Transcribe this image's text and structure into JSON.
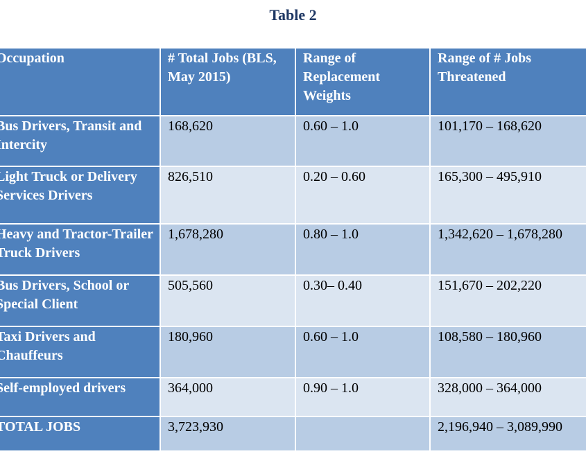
{
  "title": "Table 2",
  "headers": [
    "Occupation",
    "# Total Jobs (BLS, May 2015)",
    "Range of Replacement Weights",
    "Range of # Jobs Threatened"
  ],
  "rows": [
    {
      "occupation": "Bus Drivers, Transit and Intercity",
      "total_jobs": "168,620",
      "weights": "0.60 – 1.0",
      "threatened": "101,170 – 168,620"
    },
    {
      "occupation": "Light Truck or Delivery Services Drivers",
      "total_jobs": "826,510",
      "weights": "0.20 – 0.60",
      "threatened": "165,300 – 495,910"
    },
    {
      "occupation": "Heavy and Tractor-Trailer Truck Drivers",
      "total_jobs": "1,678,280",
      "weights": "0.80 – 1.0",
      "threatened": "1,342,620 – 1,678,280"
    },
    {
      "occupation": "Bus Drivers, School or Special Client",
      "total_jobs": "505,560",
      "weights": "0.30– 0.40",
      "threatened": "151,670 – 202,220"
    },
    {
      "occupation": "Taxi Drivers and Chauffeurs",
      "total_jobs": "180,960",
      "weights": "0.60 – 1.0",
      "threatened": "108,580 – 180,960"
    },
    {
      "occupation": "Self-employed drivers",
      "total_jobs": "364,000",
      "weights": "0.90 – 1.0",
      "threatened": "328,000 – 364,000"
    },
    {
      "occupation": "TOTAL JOBS",
      "total_jobs": "3,723,930",
      "weights": "",
      "threatened": "2,196,940 – 3,089,990"
    }
  ]
}
